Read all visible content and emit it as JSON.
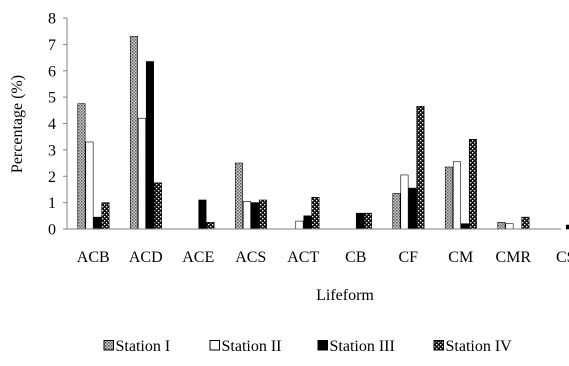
{
  "chart_data": {
    "type": "bar",
    "title": "",
    "xlabel": "Lifeform",
    "ylabel": "Percentage (%)",
    "ylim": [
      0,
      8
    ],
    "yticks": [
      "0",
      "1",
      "2",
      "3",
      "4",
      "5",
      "6",
      "7",
      "8"
    ],
    "grid": false,
    "legend_position": "bottom",
    "categories": [
      "ACB",
      "ACD",
      "ACE",
      "ACS",
      "ACT",
      "CB",
      "CF",
      "CM",
      "CMR",
      "CS"
    ],
    "series": [
      {
        "name": "Station I",
        "pattern": "dotted-gray",
        "values": [
          4.75,
          7.3,
          0,
          2.5,
          0,
          0,
          1.35,
          2.35,
          0.25,
          0
        ]
      },
      {
        "name": "Station II",
        "pattern": "white",
        "values": [
          3.3,
          4.2,
          0,
          1.05,
          0.3,
          0,
          2.05,
          2.55,
          0.2,
          0
        ]
      },
      {
        "name": "Station III",
        "pattern": "solid-black",
        "values": [
          0.45,
          6.35,
          1.1,
          1.0,
          0.5,
          0.6,
          1.55,
          0.2,
          0,
          0.15
        ]
      },
      {
        "name": "Station IV",
        "pattern": "checker-black",
        "values": [
          1.0,
          1.75,
          0.25,
          1.1,
          1.2,
          0.6,
          4.65,
          3.4,
          0.45,
          0
        ]
      }
    ]
  }
}
